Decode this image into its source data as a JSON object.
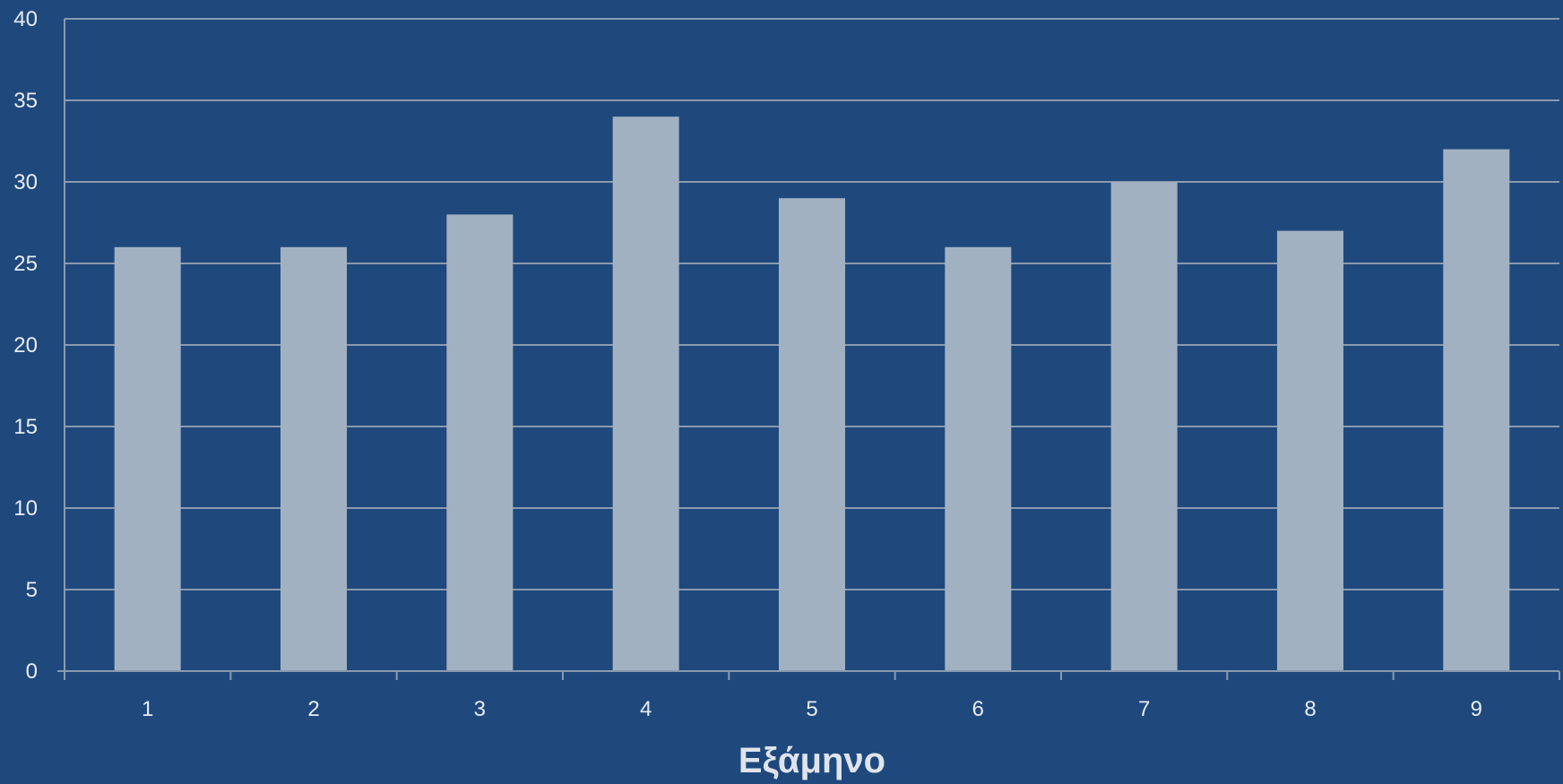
{
  "chart_data": {
    "type": "bar",
    "categories": [
      "1",
      "2",
      "3",
      "4",
      "5",
      "6",
      "7",
      "8",
      "9"
    ],
    "values": [
      26,
      26,
      28,
      34,
      29,
      26,
      30,
      27,
      32
    ],
    "xlabel": "Εξάμηνο",
    "ylabel": "",
    "ylim": [
      0,
      40
    ],
    "yticks": [
      "0",
      "5",
      "10",
      "15",
      "20",
      "25",
      "30",
      "35",
      "40"
    ],
    "grid": true,
    "colors": {
      "background": "#1f497d",
      "bar": "#a2b1c2",
      "grid": "#8a9aae",
      "text": "#e8ecf2"
    }
  }
}
